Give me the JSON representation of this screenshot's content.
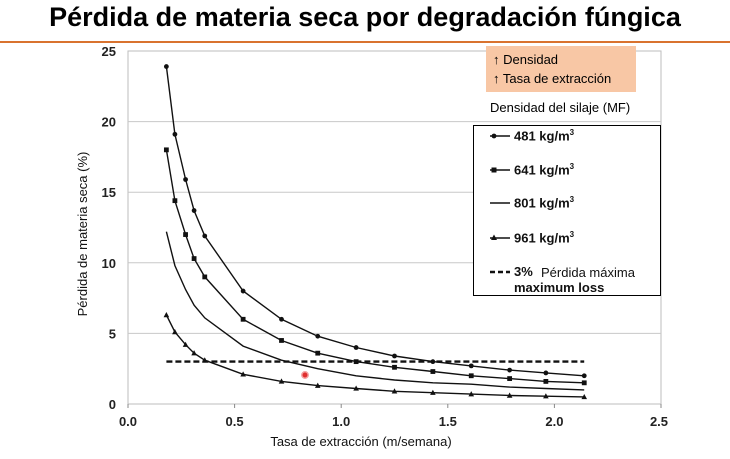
{
  "slide": {
    "title": "Pérdida de materia seca por degradación fúngica"
  },
  "note": {
    "line1": "↑ Densidad",
    "line2": "↑ Tasa de extracción",
    "fill": "#f8c7a5"
  },
  "legend": {
    "title": "Densidad del silaje (MF)",
    "items": [
      {
        "label": "481 kg/m",
        "sup": "3",
        "marker": "circle"
      },
      {
        "label": "641 kg/m",
        "sup": "3",
        "marker": "square"
      },
      {
        "label": "801 kg/m",
        "sup": "3",
        "marker": "none"
      },
      {
        "label": "961 kg/m",
        "sup": "3",
        "marker": "triangle"
      },
      {
        "label": "3%",
        "extra": "Pérdida máxima",
        "sub": "maximum loss",
        "marker": "dashed"
      }
    ]
  },
  "chart_data": {
    "type": "line",
    "xlabel": "Tasa de extracción (m/semana)",
    "ylabel": "Pérdida de materia seca (%)",
    "xlim": [
      0,
      2.5
    ],
    "ylim": [
      0,
      25
    ],
    "xticks": [
      "0.0",
      "0.5",
      "1.0",
      "1.5",
      "2.0",
      "2.5"
    ],
    "yticks": [
      "0",
      "5",
      "10",
      "15",
      "20",
      "25"
    ],
    "grid": "horizontal",
    "legend_position": "right",
    "series": [
      {
        "name": "481 kg/m³",
        "marker": "circle",
        "x": [
          0.18,
          0.22,
          0.27,
          0.31,
          0.36,
          0.54,
          0.72,
          0.89,
          1.07,
          1.25,
          1.43,
          1.61,
          1.79,
          1.96,
          2.14
        ],
        "y": [
          23.9,
          19.1,
          15.9,
          13.7,
          11.9,
          8.0,
          6.0,
          4.8,
          4.0,
          3.4,
          3.0,
          2.7,
          2.4,
          2.2,
          2.0
        ]
      },
      {
        "name": "641 kg/m³",
        "marker": "square",
        "x": [
          0.18,
          0.22,
          0.27,
          0.31,
          0.36,
          0.54,
          0.72,
          0.89,
          1.07,
          1.25,
          1.43,
          1.61,
          1.79,
          1.96,
          2.14
        ],
        "y": [
          18.0,
          14.4,
          12.0,
          10.3,
          9.0,
          6.0,
          4.5,
          3.6,
          3.0,
          2.6,
          2.3,
          2.0,
          1.8,
          1.6,
          1.5
        ]
      },
      {
        "name": "801 kg/m³",
        "marker": "none",
        "x": [
          0.18,
          0.22,
          0.27,
          0.31,
          0.36,
          0.54,
          0.72,
          0.89,
          1.07,
          1.25,
          1.43,
          1.61,
          1.79,
          1.96,
          2.14
        ],
        "y": [
          12.2,
          9.8,
          8.1,
          7.0,
          6.1,
          4.1,
          3.1,
          2.5,
          2.0,
          1.7,
          1.5,
          1.4,
          1.2,
          1.1,
          1.0
        ]
      },
      {
        "name": "961 kg/m³",
        "marker": "triangle",
        "x": [
          0.18,
          0.22,
          0.27,
          0.31,
          0.36,
          0.54,
          0.72,
          0.89,
          1.07,
          1.25,
          1.43,
          1.61,
          1.79,
          1.96,
          2.14
        ],
        "y": [
          6.3,
          5.1,
          4.2,
          3.6,
          3.1,
          2.1,
          1.6,
          1.3,
          1.1,
          0.9,
          0.8,
          0.7,
          0.6,
          0.55,
          0.5
        ]
      },
      {
        "name": "3% maximum loss",
        "marker": "dashed",
        "x": [
          0.18,
          2.14
        ],
        "y": [
          3.0,
          3.0
        ]
      }
    ]
  }
}
